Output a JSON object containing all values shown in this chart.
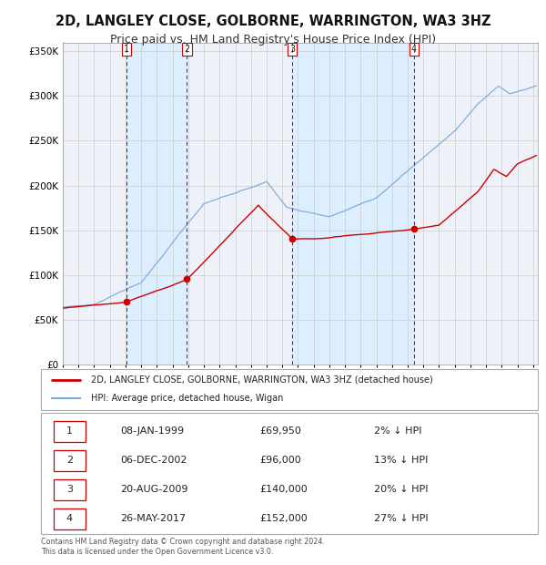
{
  "title": "2D, LANGLEY CLOSE, GOLBORNE, WARRINGTON, WA3 3HZ",
  "subtitle": "Price paid vs. HM Land Registry's House Price Index (HPI)",
  "footer1": "Contains HM Land Registry data © Crown copyright and database right 2024.",
  "footer2": "This data is licensed under the Open Government Licence v3.0.",
  "legend_red": "2D, LANGLEY CLOSE, GOLBORNE, WARRINGTON, WA3 3HZ (detached house)",
  "legend_blue": "HPI: Average price, detached house, Wigan",
  "transactions": [
    {
      "num": 1,
      "date": "08-JAN-1999",
      "price": 69950,
      "pct": "2%",
      "x": 1999.04
    },
    {
      "num": 2,
      "date": "06-DEC-2002",
      "price": 96000,
      "pct": "13%",
      "x": 2002.92
    },
    {
      "num": 3,
      "date": "20-AUG-2009",
      "price": 140000,
      "pct": "20%",
      "x": 2009.64
    },
    {
      "num": 4,
      "date": "26-MAY-2017",
      "price": 152000,
      "pct": "27%",
      "x": 2017.4
    }
  ],
  "vline_color": "#cc0000",
  "vline_style": "--",
  "band_color": "#ddeeff",
  "red_line_color": "#cc0000",
  "blue_line_color": "#7aaadd",
  "dot_color": "#cc0000",
  "ylim": [
    0,
    360000
  ],
  "yticks": [
    0,
    50000,
    100000,
    150000,
    200000,
    250000,
    300000,
    350000
  ],
  "grid_color": "#cccccc",
  "bg_color": "#ffffff",
  "plot_bg_color": "#eef2f8",
  "title_fontsize": 10.5,
  "subtitle_fontsize": 9
}
